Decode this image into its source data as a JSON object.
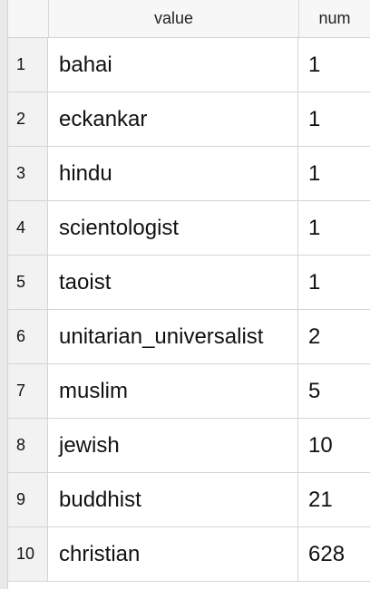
{
  "table": {
    "columns": [
      "value",
      "num"
    ],
    "rows": [
      {
        "rownum": "1",
        "value": "bahai",
        "num": "1"
      },
      {
        "rownum": "2",
        "value": "eckankar",
        "num": "1"
      },
      {
        "rownum": "3",
        "value": "hindu",
        "num": "1"
      },
      {
        "rownum": "4",
        "value": "scientologist",
        "num": "1"
      },
      {
        "rownum": "5",
        "value": "taoist",
        "num": "1"
      },
      {
        "rownum": "6",
        "value": "unitarian_universalist",
        "num": "2"
      },
      {
        "rownum": "7",
        "value": "muslim",
        "num": "5"
      },
      {
        "rownum": "8",
        "value": "jewish",
        "num": "10"
      },
      {
        "rownum": "9",
        "value": "buddhist",
        "num": "21"
      },
      {
        "rownum": "10",
        "value": "christian",
        "num": "628"
      }
    ]
  }
}
